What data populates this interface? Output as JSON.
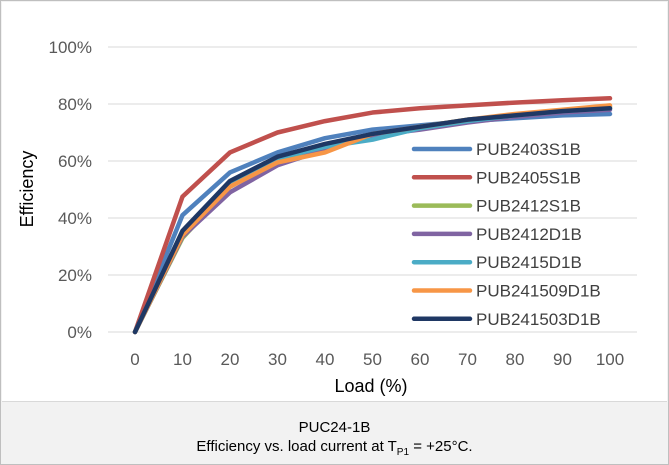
{
  "chart_data": {
    "type": "line",
    "ylabel": "Efficiency",
    "xlabel": "Load (%)",
    "x": [
      0,
      10,
      20,
      30,
      40,
      50,
      60,
      70,
      80,
      90,
      100
    ],
    "xticks": [
      "0",
      "10",
      "20",
      "30",
      "40",
      "50",
      "60",
      "70",
      "80",
      "90",
      "100"
    ],
    "yticks": [
      "0%",
      "20%",
      "40%",
      "60%",
      "80%",
      "100%"
    ],
    "ylim": [
      0,
      100
    ],
    "xlim": [
      0,
      100
    ],
    "grid": "horizontal",
    "legend_position": "right",
    "series": [
      {
        "name": "PUB2403S1B",
        "color": "#4f81bd",
        "values": [
          0,
          41,
          56,
          63,
          68,
          71,
          72.5,
          74,
          75,
          76,
          76.5
        ]
      },
      {
        "name": "PUB2405S1B",
        "color": "#c0504d",
        "values": [
          0,
          47.5,
          63,
          70,
          74,
          77,
          78.5,
          79.5,
          80.5,
          81.3,
          82
        ]
      },
      {
        "name": "PUB2412S1B",
        "color": "#9bbb59",
        "values": [
          0,
          33,
          51,
          60,
          65,
          69,
          72,
          74.5,
          76,
          77.5,
          79
        ]
      },
      {
        "name": "PUB2412D1B",
        "color": "#8064a2",
        "values": [
          0,
          33.5,
          49,
          58.5,
          64,
          69,
          71,
          73.5,
          75.5,
          77,
          78
        ]
      },
      {
        "name": "PUB2415D1B",
        "color": "#4bacc6",
        "values": [
          0,
          35,
          52,
          61,
          65,
          67.5,
          71.5,
          74,
          76,
          77.5,
          78.5
        ]
      },
      {
        "name": "PUB241509D1B",
        "color": "#f79646",
        "values": [
          0,
          34,
          51,
          59.5,
          63,
          69.5,
          72,
          74.5,
          76.5,
          78,
          79.5
        ]
      },
      {
        "name": "PUB241503D1B",
        "color": "#1f3864",
        "values": [
          0,
          35.5,
          53,
          61.5,
          66,
          69.5,
          72,
          74.5,
          76,
          77.5,
          78.5
        ]
      }
    ]
  },
  "caption": {
    "line1": "PUC24-1B",
    "line2_prefix": "Efficiency vs. load current at T",
    "line2_sub": "P1",
    "line2_suffix": " = +25°C."
  }
}
